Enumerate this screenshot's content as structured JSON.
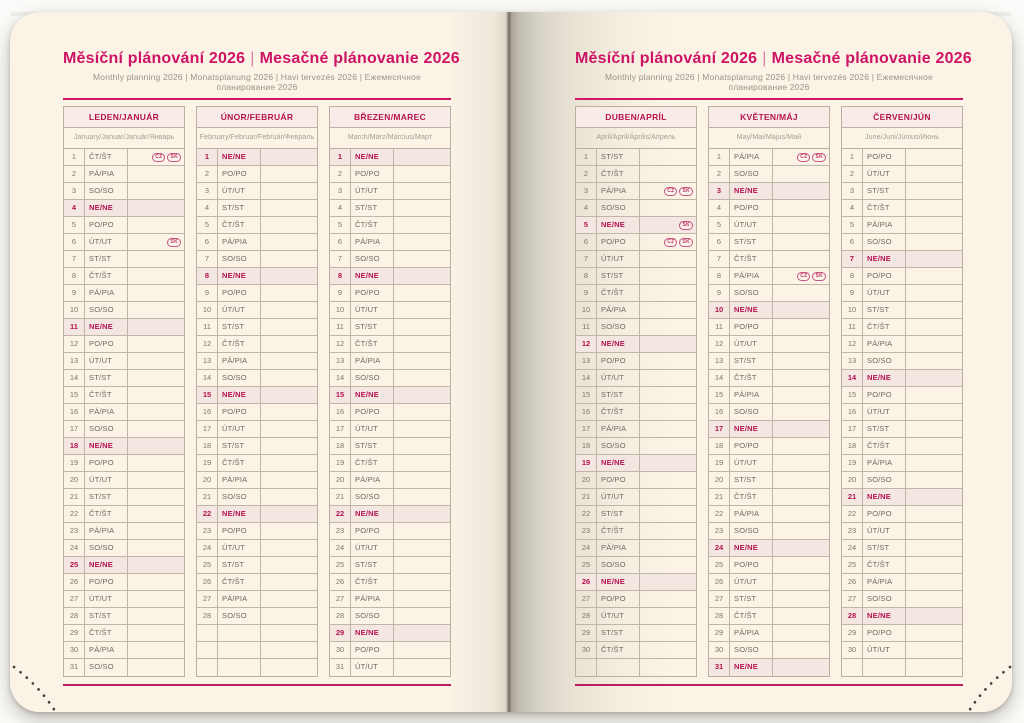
{
  "header": {
    "title_cs": "Měsíční plánování 2026",
    "separator": "|",
    "title_sk": "Mesačné plánovanie 2026",
    "subtitle": "Monthly planning 2026 | Monatsplanung 2026 | Havi tervezés 2026 | Ежемесячное планирование 2026"
  },
  "colors": {
    "accent_pink": "#d3156a",
    "title_pink": "#ce1364",
    "holiday_red": "#b51350",
    "sunday_row_bg": "#f4e6e1",
    "header_row_bg": "#f9ece8",
    "page_cream": "#faf3e6",
    "table_border": "#b9b0a2"
  },
  "badge_labels": {
    "cz": "CZ",
    "sk": "SK"
  },
  "rows_per_table": 31,
  "months": [
    {
      "name": "LEDEN/JANUÁR",
      "subtitle": "January/Januar/Január/Январь",
      "days": [
        {
          "n": 1,
          "d": "ČT/ŠT",
          "b": [
            "CZ",
            "SK"
          ]
        },
        {
          "n": 2,
          "d": "PÁ/PIA"
        },
        {
          "n": 3,
          "d": "SO/SO"
        },
        {
          "n": 4,
          "d": "NE/NE"
        },
        {
          "n": 5,
          "d": "PO/PO"
        },
        {
          "n": 6,
          "d": "ÚT/UT",
          "b": [
            "SK"
          ]
        },
        {
          "n": 7,
          "d": "ST/ST"
        },
        {
          "n": 8,
          "d": "ČT/ŠT"
        },
        {
          "n": 9,
          "d": "PÁ/PIA"
        },
        {
          "n": 10,
          "d": "SO/SO"
        },
        {
          "n": 11,
          "d": "NE/NE"
        },
        {
          "n": 12,
          "d": "PO/PO"
        },
        {
          "n": 13,
          "d": "ÚT/UT"
        },
        {
          "n": 14,
          "d": "ST/ST"
        },
        {
          "n": 15,
          "d": "ČT/ŠT"
        },
        {
          "n": 16,
          "d": "PÁ/PIA"
        },
        {
          "n": 17,
          "d": "SO/SO"
        },
        {
          "n": 18,
          "d": "NE/NE"
        },
        {
          "n": 19,
          "d": "PO/PO"
        },
        {
          "n": 20,
          "d": "ÚT/UT"
        },
        {
          "n": 21,
          "d": "ST/ST"
        },
        {
          "n": 22,
          "d": "ČT/ŠT"
        },
        {
          "n": 23,
          "d": "PÁ/PIA"
        },
        {
          "n": 24,
          "d": "SO/SO"
        },
        {
          "n": 25,
          "d": "NE/NE"
        },
        {
          "n": 26,
          "d": "PO/PO"
        },
        {
          "n": 27,
          "d": "ÚT/UT"
        },
        {
          "n": 28,
          "d": "ST/ST"
        },
        {
          "n": 29,
          "d": "ČT/ŠT"
        },
        {
          "n": 30,
          "d": "PÁ/PIA"
        },
        {
          "n": 31,
          "d": "SO/SO"
        }
      ]
    },
    {
      "name": "ÚNOR/FEBRUÁR",
      "subtitle": "February/Februar/Február/Февраль",
      "days": [
        {
          "n": 1,
          "d": "NE/NE"
        },
        {
          "n": 2,
          "d": "PO/PO"
        },
        {
          "n": 3,
          "d": "ÚT/UT"
        },
        {
          "n": 4,
          "d": "ST/ST"
        },
        {
          "n": 5,
          "d": "ČT/ŠT"
        },
        {
          "n": 6,
          "d": "PÁ/PIA"
        },
        {
          "n": 7,
          "d": "SO/SO"
        },
        {
          "n": 8,
          "d": "NE/NE"
        },
        {
          "n": 9,
          "d": "PO/PO"
        },
        {
          "n": 10,
          "d": "ÚT/UT"
        },
        {
          "n": 11,
          "d": "ST/ST"
        },
        {
          "n": 12,
          "d": "ČT/ŠT"
        },
        {
          "n": 13,
          "d": "PÁ/PIA"
        },
        {
          "n": 14,
          "d": "SO/SO"
        },
        {
          "n": 15,
          "d": "NE/NE"
        },
        {
          "n": 16,
          "d": "PO/PO"
        },
        {
          "n": 17,
          "d": "ÚT/UT"
        },
        {
          "n": 18,
          "d": "ST/ST"
        },
        {
          "n": 19,
          "d": "ČT/ŠT"
        },
        {
          "n": 20,
          "d": "PÁ/PIA"
        },
        {
          "n": 21,
          "d": "SO/SO"
        },
        {
          "n": 22,
          "d": "NE/NE"
        },
        {
          "n": 23,
          "d": "PO/PO"
        },
        {
          "n": 24,
          "d": "ÚT/UT"
        },
        {
          "n": 25,
          "d": "ST/ST"
        },
        {
          "n": 26,
          "d": "ČT/ŠT"
        },
        {
          "n": 27,
          "d": "PÁ/PIA"
        },
        {
          "n": 28,
          "d": "SO/SO"
        }
      ]
    },
    {
      "name": "BŘEZEN/MAREC",
      "subtitle": "March/März/Március/Март",
      "days": [
        {
          "n": 1,
          "d": "NE/NE"
        },
        {
          "n": 2,
          "d": "PO/PO"
        },
        {
          "n": 3,
          "d": "ÚT/UT"
        },
        {
          "n": 4,
          "d": "ST/ST"
        },
        {
          "n": 5,
          "d": "ČT/ŠT"
        },
        {
          "n": 6,
          "d": "PÁ/PIA"
        },
        {
          "n": 7,
          "d": "SO/SO"
        },
        {
          "n": 8,
          "d": "NE/NE"
        },
        {
          "n": 9,
          "d": "PO/PO"
        },
        {
          "n": 10,
          "d": "ÚT/UT"
        },
        {
          "n": 11,
          "d": "ST/ST"
        },
        {
          "n": 12,
          "d": "ČT/ŠT"
        },
        {
          "n": 13,
          "d": "PÁ/PIA"
        },
        {
          "n": 14,
          "d": "SO/SO"
        },
        {
          "n": 15,
          "d": "NE/NE"
        },
        {
          "n": 16,
          "d": "PO/PO"
        },
        {
          "n": 17,
          "d": "ÚT/UT"
        },
        {
          "n": 18,
          "d": "ST/ST"
        },
        {
          "n": 19,
          "d": "ČT/ŠT"
        },
        {
          "n": 20,
          "d": "PÁ/PIA"
        },
        {
          "n": 21,
          "d": "SO/SO"
        },
        {
          "n": 22,
          "d": "NE/NE"
        },
        {
          "n": 23,
          "d": "PO/PO"
        },
        {
          "n": 24,
          "d": "ÚT/UT"
        },
        {
          "n": 25,
          "d": "ST/ST"
        },
        {
          "n": 26,
          "d": "ČT/ŠT"
        },
        {
          "n": 27,
          "d": "PÁ/PIA"
        },
        {
          "n": 28,
          "d": "SO/SO"
        },
        {
          "n": 29,
          "d": "NE/NE"
        },
        {
          "n": 30,
          "d": "PO/PO"
        },
        {
          "n": 31,
          "d": "ÚT/UT"
        }
      ]
    },
    {
      "name": "DUBEN/APRÍL",
      "subtitle": "April/April/Április/Апрель",
      "days": [
        {
          "n": 1,
          "d": "ST/ST"
        },
        {
          "n": 2,
          "d": "ČT/ŠT"
        },
        {
          "n": 3,
          "d": "PÁ/PIA",
          "b": [
            "CZ",
            "SK"
          ]
        },
        {
          "n": 4,
          "d": "SO/SO"
        },
        {
          "n": 5,
          "d": "NE/NE",
          "b": [
            "SK"
          ]
        },
        {
          "n": 6,
          "d": "PO/PO",
          "b": [
            "CZ",
            "SK"
          ]
        },
        {
          "n": 7,
          "d": "ÚT/UT"
        },
        {
          "n": 8,
          "d": "ST/ST"
        },
        {
          "n": 9,
          "d": "ČT/ŠT"
        },
        {
          "n": 10,
          "d": "PÁ/PIA"
        },
        {
          "n": 11,
          "d": "SO/SO"
        },
        {
          "n": 12,
          "d": "NE/NE"
        },
        {
          "n": 13,
          "d": "PO/PO"
        },
        {
          "n": 14,
          "d": "ÚT/UT"
        },
        {
          "n": 15,
          "d": "ST/ST"
        },
        {
          "n": 16,
          "d": "ČT/ŠT"
        },
        {
          "n": 17,
          "d": "PÁ/PIA"
        },
        {
          "n": 18,
          "d": "SO/SO"
        },
        {
          "n": 19,
          "d": "NE/NE"
        },
        {
          "n": 20,
          "d": "PO/PO"
        },
        {
          "n": 21,
          "d": "ÚT/UT"
        },
        {
          "n": 22,
          "d": "ST/ST"
        },
        {
          "n": 23,
          "d": "ČT/ŠT"
        },
        {
          "n": 24,
          "d": "PÁ/PIA"
        },
        {
          "n": 25,
          "d": "SO/SO"
        },
        {
          "n": 26,
          "d": "NE/NE"
        },
        {
          "n": 27,
          "d": "PO/PO"
        },
        {
          "n": 28,
          "d": "ÚT/UT"
        },
        {
          "n": 29,
          "d": "ST/ST"
        },
        {
          "n": 30,
          "d": "ČT/ŠT"
        }
      ]
    },
    {
      "name": "KVĚTEN/MÁJ",
      "subtitle": "May/Mai/Május/Май",
      "days": [
        {
          "n": 1,
          "d": "PÁ/PIA",
          "b": [
            "CZ",
            "SK"
          ]
        },
        {
          "n": 2,
          "d": "SO/SO"
        },
        {
          "n": 3,
          "d": "NE/NE"
        },
        {
          "n": 4,
          "d": "PO/PO"
        },
        {
          "n": 5,
          "d": "ÚT/UT"
        },
        {
          "n": 6,
          "d": "ST/ST"
        },
        {
          "n": 7,
          "d": "ČT/ŠT"
        },
        {
          "n": 8,
          "d": "PÁ/PIA",
          "b": [
            "CZ",
            "SK"
          ]
        },
        {
          "n": 9,
          "d": "SO/SO"
        },
        {
          "n": 10,
          "d": "NE/NE"
        },
        {
          "n": 11,
          "d": "PO/PO"
        },
        {
          "n": 12,
          "d": "ÚT/UT"
        },
        {
          "n": 13,
          "d": "ST/ST"
        },
        {
          "n": 14,
          "d": "ČT/ŠT"
        },
        {
          "n": 15,
          "d": "PÁ/PIA"
        },
        {
          "n": 16,
          "d": "SO/SO"
        },
        {
          "n": 17,
          "d": "NE/NE"
        },
        {
          "n": 18,
          "d": "PO/PO"
        },
        {
          "n": 19,
          "d": "ÚT/UT"
        },
        {
          "n": 20,
          "d": "ST/ST"
        },
        {
          "n": 21,
          "d": "ČT/ŠT"
        },
        {
          "n": 22,
          "d": "PÁ/PIA"
        },
        {
          "n": 23,
          "d": "SO/SO"
        },
        {
          "n": 24,
          "d": "NE/NE"
        },
        {
          "n": 25,
          "d": "PO/PO"
        },
        {
          "n": 26,
          "d": "ÚT/UT"
        },
        {
          "n": 27,
          "d": "ST/ST"
        },
        {
          "n": 28,
          "d": "ČT/ŠT"
        },
        {
          "n": 29,
          "d": "PÁ/PIA"
        },
        {
          "n": 30,
          "d": "SO/SO"
        },
        {
          "n": 31,
          "d": "NE/NE"
        }
      ]
    },
    {
      "name": "ČERVEN/JÚN",
      "subtitle": "June/Juni/Június/Июнь",
      "days": [
        {
          "n": 1,
          "d": "PO/PO"
        },
        {
          "n": 2,
          "d": "ÚT/UT"
        },
        {
          "n": 3,
          "d": "ST/ST"
        },
        {
          "n": 4,
          "d": "ČT/ŠT"
        },
        {
          "n": 5,
          "d": "PÁ/PIA"
        },
        {
          "n": 6,
          "d": "SO/SO"
        },
        {
          "n": 7,
          "d": "NE/NE"
        },
        {
          "n": 8,
          "d": "PO/PO"
        },
        {
          "n": 9,
          "d": "ÚT/UT"
        },
        {
          "n": 10,
          "d": "ST/ST"
        },
        {
          "n": 11,
          "d": "ČT/ŠT"
        },
        {
          "n": 12,
          "d": "PÁ/PIA"
        },
        {
          "n": 13,
          "d": "SO/SO"
        },
        {
          "n": 14,
          "d": "NE/NE"
        },
        {
          "n": 15,
          "d": "PO/PO"
        },
        {
          "n": 16,
          "d": "ÚT/UT"
        },
        {
          "n": 17,
          "d": "ST/ST"
        },
        {
          "n": 18,
          "d": "ČT/ŠT"
        },
        {
          "n": 19,
          "d": "PÁ/PIA"
        },
        {
          "n": 20,
          "d": "SO/SO"
        },
        {
          "n": 21,
          "d": "NE/NE"
        },
        {
          "n": 22,
          "d": "PO/PO"
        },
        {
          "n": 23,
          "d": "ÚT/UT"
        },
        {
          "n": 24,
          "d": "ST/ST"
        },
        {
          "n": 25,
          "d": "ČT/ŠT"
        },
        {
          "n": 26,
          "d": "PÁ/PIA"
        },
        {
          "n": 27,
          "d": "SO/SO"
        },
        {
          "n": 28,
          "d": "NE/NE"
        },
        {
          "n": 29,
          "d": "PO/PO"
        },
        {
          "n": 30,
          "d": "ÚT/UT"
        }
      ]
    }
  ]
}
